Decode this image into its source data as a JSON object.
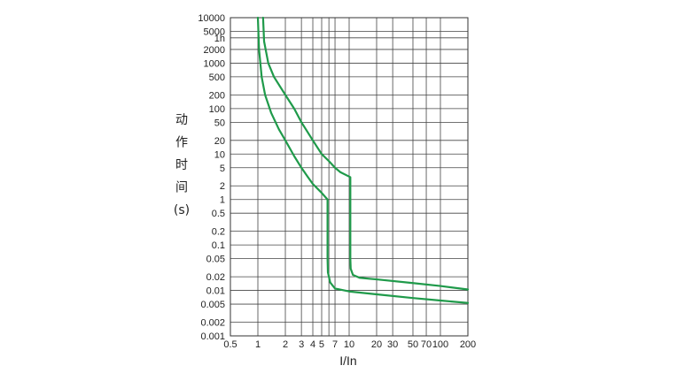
{
  "chart_data": {
    "type": "line",
    "title": "",
    "xlabel": "I/In",
    "ylabel": [
      "动",
      "作",
      "时",
      "间",
      "(s)"
    ],
    "x_scale": "log",
    "y_scale": "log",
    "xlim": [
      0.5,
      200
    ],
    "ylim": [
      0.001,
      10000
    ],
    "grid": true,
    "x_ticks": [
      {
        "value": 0.5,
        "label": "0.5"
      },
      {
        "value": 1,
        "label": "1"
      },
      {
        "value": 2,
        "label": "2"
      },
      {
        "value": 3,
        "label": "3"
      },
      {
        "value": 4,
        "label": "4"
      },
      {
        "value": 5,
        "label": "5"
      },
      {
        "value": 7,
        "label": "7"
      },
      {
        "value": 10,
        "label": "10"
      },
      {
        "value": 20,
        "label": "20"
      },
      {
        "value": 30,
        "label": "30"
      },
      {
        "value": 50,
        "label": "50"
      },
      {
        "value": 70,
        "label": "70"
      },
      {
        "value": 100,
        "label": "100"
      },
      {
        "value": 200,
        "label": "200"
      }
    ],
    "x_gridlines": [
      0.5,
      1,
      2,
      3,
      4,
      5,
      6,
      7,
      10,
      20,
      30,
      50,
      70,
      100,
      200
    ],
    "y_ticks": [
      {
        "value": 10000,
        "label": "10000"
      },
      {
        "value": 5000,
        "label": "5000"
      },
      {
        "value": 3600,
        "label": "1h"
      },
      {
        "value": 2000,
        "label": "2000"
      },
      {
        "value": 1000,
        "label": "1000"
      },
      {
        "value": 500,
        "label": "500"
      },
      {
        "value": 200,
        "label": "200"
      },
      {
        "value": 100,
        "label": "100"
      },
      {
        "value": 50,
        "label": "50"
      },
      {
        "value": 20,
        "label": "20"
      },
      {
        "value": 10,
        "label": "10"
      },
      {
        "value": 5,
        "label": "5"
      },
      {
        "value": 2,
        "label": "2"
      },
      {
        "value": 1,
        "label": "1"
      },
      {
        "value": 0.5,
        "label": "0.5"
      },
      {
        "value": 0.2,
        "label": "0.2"
      },
      {
        "value": 0.1,
        "label": "0.1"
      },
      {
        "value": 0.05,
        "label": "0.05"
      },
      {
        "value": 0.02,
        "label": "0.02"
      },
      {
        "value": 0.01,
        "label": "0.01"
      },
      {
        "value": 0.005,
        "label": "0.005"
      },
      {
        "value": 0.002,
        "label": "0.002"
      },
      {
        "value": 0.001,
        "label": "0.001"
      }
    ],
    "series": [
      {
        "color": "#1f9a4a",
        "points": [
          [
            1.0,
            10000
          ],
          [
            1.03,
            2000
          ],
          [
            1.1,
            500
          ],
          [
            1.2,
            200
          ],
          [
            1.4,
            80
          ],
          [
            1.7,
            35
          ],
          [
            2.0,
            20
          ],
          [
            2.5,
            9
          ],
          [
            3.0,
            5
          ],
          [
            3.5,
            3.2
          ],
          [
            4.0,
            2.2
          ],
          [
            5.0,
            1.4
          ],
          [
            5.8,
            1.0
          ],
          [
            5.8,
            0.05
          ],
          [
            5.85,
            0.025
          ],
          [
            6.2,
            0.015
          ],
          [
            7.0,
            0.011
          ],
          [
            10,
            0.0095
          ],
          [
            20,
            0.0082
          ],
          [
            50,
            0.0068
          ],
          [
            100,
            0.006
          ],
          [
            200,
            0.0053
          ]
        ]
      },
      {
        "color": "#1f9a4a",
        "points": [
          [
            1.14,
            10000
          ],
          [
            1.17,
            3000
          ],
          [
            1.3,
            1000
          ],
          [
            1.5,
            500
          ],
          [
            2.0,
            200
          ],
          [
            2.5,
            100
          ],
          [
            3.0,
            50
          ],
          [
            4.0,
            20
          ],
          [
            5.0,
            10
          ],
          [
            6.0,
            7
          ],
          [
            7.0,
            5
          ],
          [
            8.0,
            4
          ],
          [
            10.3,
            3.1
          ],
          [
            10.3,
            0.05
          ],
          [
            10.4,
            0.03
          ],
          [
            11,
            0.022
          ],
          [
            13,
            0.019
          ],
          [
            17,
            0.018
          ],
          [
            20,
            0.0175
          ],
          [
            50,
            0.0145
          ],
          [
            100,
            0.0125
          ],
          [
            200,
            0.0105
          ]
        ]
      }
    ]
  }
}
